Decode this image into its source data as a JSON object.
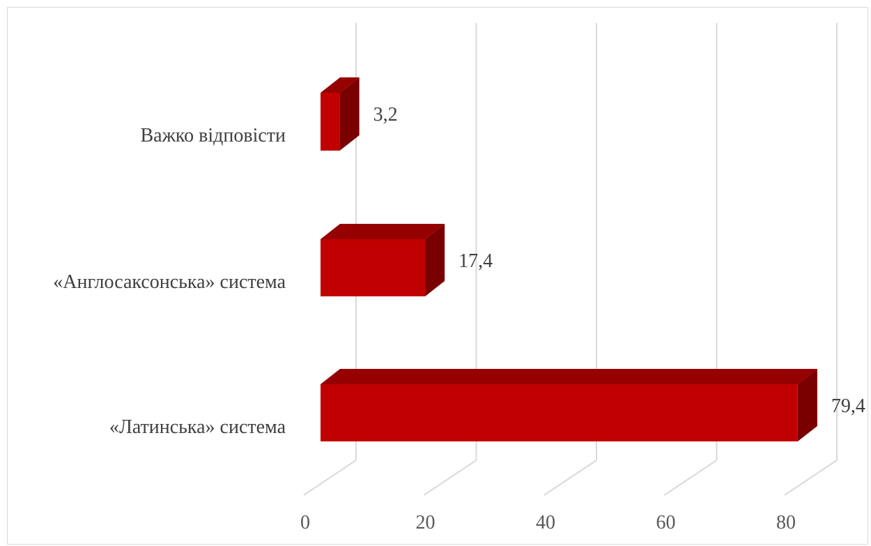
{
  "chart_data": {
    "type": "bar",
    "orientation": "horizontal",
    "style": "3d",
    "categories": [
      "Важко відповісти",
      "«Англосаксонська» система",
      "«Латинська» система"
    ],
    "values": [
      3.2,
      17.4,
      79.4
    ],
    "data_labels": [
      "3,2",
      "17,4",
      "79,4"
    ],
    "xlim": [
      0,
      80
    ],
    "xticks": [
      0,
      20,
      40,
      60,
      80
    ],
    "title": "",
    "xlabel": "",
    "ylabel": "",
    "grid": true,
    "legend": "none",
    "colors": {
      "bar_front": "#c00000",
      "bar_top": "#960000",
      "bar_side": "#7a0000",
      "grid": "#d9d9d9"
    }
  }
}
